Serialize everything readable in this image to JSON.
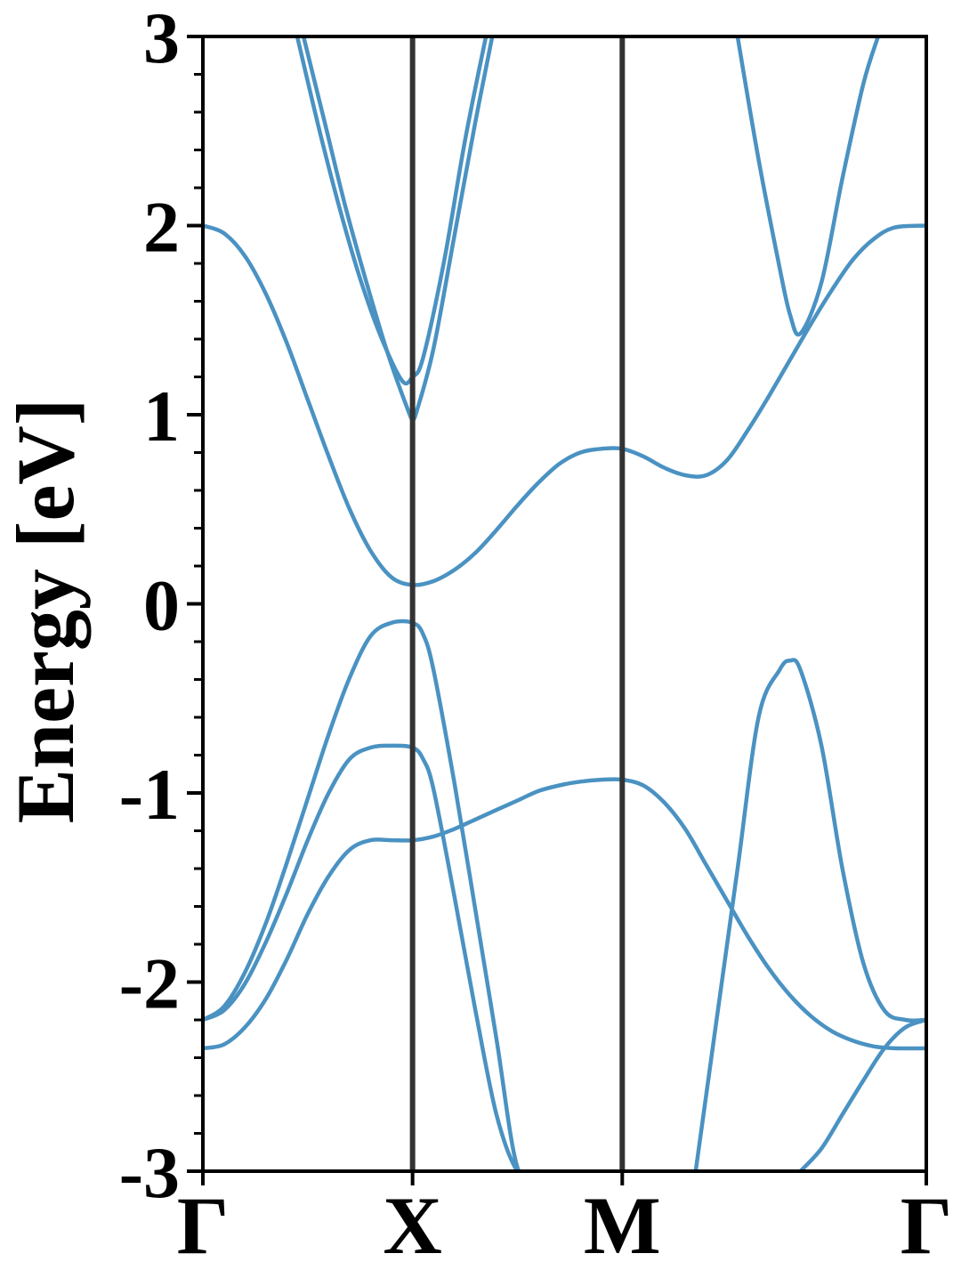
{
  "chart_data": {
    "type": "line",
    "title": "",
    "xlabel": "",
    "ylabel": "Energy [eV]",
    "ylim": [
      -3,
      3
    ],
    "xlim": [
      0,
      3.45
    ],
    "yticks": [
      -3,
      -2,
      -1,
      0,
      1,
      2,
      3
    ],
    "ytick_labels": [
      "-3",
      "-2",
      "-1",
      "0",
      "1",
      "2",
      "3"
    ],
    "y_minor_step": 0.2,
    "xticks": [
      {
        "x": 0,
        "label": "Γ"
      },
      {
        "x": 1,
        "label": "X"
      },
      {
        "x": 2,
        "label": "M"
      },
      {
        "x": 3.45,
        "label": "Γ"
      }
    ],
    "vlines": [
      1,
      2
    ],
    "grid": false,
    "legend": "none",
    "colors": {
      "band": "#4a92c2",
      "vline": "#333333",
      "axis": "#000000"
    },
    "series": [
      {
        "x": [
          0,
          0.1,
          0.2,
          0.3,
          0.4,
          0.5,
          0.6,
          0.7,
          0.8,
          0.9,
          1.0,
          1.1,
          1.2,
          1.3,
          1.4,
          1.5,
          1.6,
          1.7,
          1.8,
          1.9,
          2.0,
          2.1,
          2.2,
          2.3,
          2.4,
          2.5,
          2.6,
          2.7,
          2.8,
          2.9,
          3.0,
          3.1,
          3.2,
          3.3,
          3.45
        ],
        "y": [
          2.0,
          1.96,
          1.84,
          1.64,
          1.38,
          1.08,
          0.78,
          0.5,
          0.28,
          0.14,
          0.1,
          0.12,
          0.18,
          0.27,
          0.39,
          0.52,
          0.64,
          0.74,
          0.8,
          0.82,
          0.82,
          0.78,
          0.72,
          0.68,
          0.68,
          0.76,
          0.92,
          1.1,
          1.29,
          1.48,
          1.66,
          1.82,
          1.93,
          1.99,
          2.0
        ]
      },
      {
        "x": [
          0.45,
          0.55,
          0.65,
          0.75,
          0.85,
          0.95,
          1.0,
          1.05,
          1.15,
          1.25,
          1.35
        ],
        "y": [
          3.0,
          2.53,
          2.1,
          1.72,
          1.41,
          1.18,
          1.2,
          1.3,
          1.81,
          2.45,
          3.0
        ]
      },
      {
        "x": [
          0.48,
          0.58,
          0.68,
          0.78,
          0.88,
          0.98,
          1.0,
          1.02,
          1.1,
          1.2,
          1.3,
          1.38
        ],
        "y": [
          3.0,
          2.55,
          2.1,
          1.7,
          1.33,
          1.02,
          0.98,
          1.02,
          1.35,
          1.95,
          2.55,
          3.0
        ]
      },
      {
        "x": [
          2.55,
          2.65,
          2.75,
          2.8,
          2.85,
          2.95,
          3.05,
          3.15,
          3.22
        ],
        "y": [
          3.0,
          2.35,
          1.78,
          1.53,
          1.43,
          1.7,
          2.25,
          2.75,
          3.0
        ]
      },
      {
        "x": [
          0,
          0.1,
          0.2,
          0.3,
          0.4,
          0.5,
          0.6,
          0.7,
          0.8,
          0.9,
          1.0,
          1.05,
          1.1,
          1.2,
          1.3,
          1.4,
          1.5,
          1.6
        ],
        "y": [
          -2.2,
          -2.13,
          -1.95,
          -1.69,
          -1.37,
          -1.03,
          -0.69,
          -0.39,
          -0.17,
          -0.1,
          -0.1,
          -0.16,
          -0.35,
          -0.95,
          -1.62,
          -2.3,
          -2.98,
          -3.0
        ]
      },
      {
        "x": [
          0,
          0.1,
          0.2,
          0.3,
          0.4,
          0.5,
          0.6,
          0.7,
          0.8,
          0.9,
          1.0,
          1.05,
          1.1,
          1.2,
          1.3,
          1.4,
          1.5,
          1.58
        ],
        "y": [
          -2.2,
          -2.15,
          -2.01,
          -1.79,
          -1.53,
          -1.25,
          -1.0,
          -0.82,
          -0.76,
          -0.75,
          -0.76,
          -0.82,
          -0.98,
          -1.55,
          -2.15,
          -2.7,
          -3.0,
          -3.0
        ]
      },
      {
        "x": [
          0,
          0.1,
          0.2,
          0.3,
          0.4,
          0.5,
          0.6,
          0.7,
          0.8,
          0.9,
          1.0,
          1.1,
          1.2,
          1.3,
          1.4,
          1.5,
          1.6,
          1.7,
          1.8,
          1.9,
          2.0,
          2.1,
          2.2,
          2.3,
          2.4,
          2.5,
          2.6,
          2.7,
          2.8,
          2.9,
          3.0,
          3.1,
          3.2,
          3.3,
          3.45
        ],
        "y": [
          -2.35,
          -2.33,
          -2.24,
          -2.09,
          -1.88,
          -1.64,
          -1.44,
          -1.3,
          -1.25,
          -1.25,
          -1.25,
          -1.23,
          -1.19,
          -1.14,
          -1.09,
          -1.04,
          -0.99,
          -0.96,
          -0.94,
          -0.93,
          -0.93,
          -0.96,
          -1.05,
          -1.19,
          -1.38,
          -1.57,
          -1.76,
          -1.93,
          -2.07,
          -2.18,
          -2.26,
          -2.31,
          -2.34,
          -2.35,
          -2.35
        ]
      },
      {
        "x": [
          2.35,
          2.45,
          2.55,
          2.65,
          2.75,
          2.8,
          2.85,
          2.95,
          3.05,
          3.15,
          3.25,
          3.35,
          3.45
        ],
        "y": [
          -3.0,
          -2.2,
          -1.4,
          -0.6,
          -0.35,
          -0.3,
          -0.35,
          -0.75,
          -1.4,
          -1.9,
          -2.15,
          -2.2,
          -2.2
        ]
      },
      {
        "x": [
          2.85,
          2.95,
          3.05,
          3.15,
          3.25,
          3.35,
          3.45
        ],
        "y": [
          -3.0,
          -2.88,
          -2.7,
          -2.52,
          -2.35,
          -2.24,
          -2.2
        ]
      }
    ]
  }
}
